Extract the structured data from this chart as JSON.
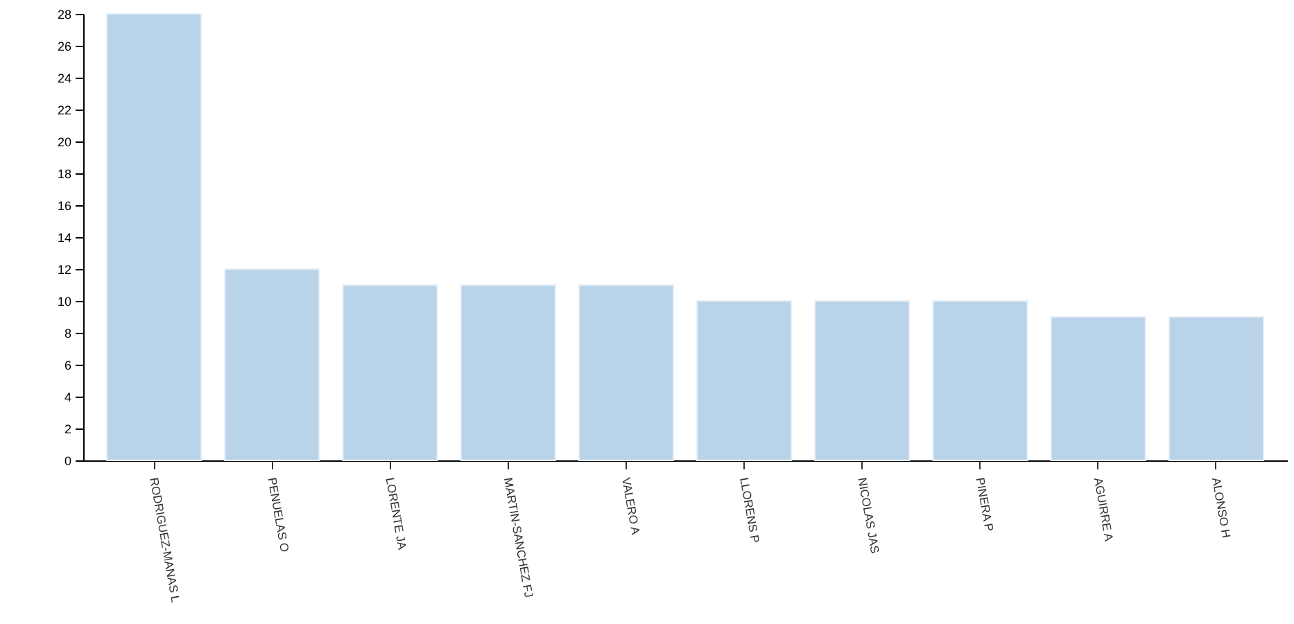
{
  "chart_data": {
    "type": "bar",
    "categories": [
      "RODRIGUEZ-MANAS L",
      "PENUELAS O",
      "LORENTE JA",
      "MARTIN-SANCHEZ FJ",
      "VALERO A",
      "LLORENS P",
      "NICOLAS JAS",
      "PINERA P",
      "AGUIRRE A",
      "ALONSO H"
    ],
    "values": [
      28,
      12,
      11,
      11,
      11,
      10,
      10,
      10,
      9,
      9
    ],
    "color": "#b9d3e9",
    "ylim": [
      0,
      28
    ],
    "yticks": [
      0,
      2,
      4,
      6,
      8,
      10,
      12,
      14,
      16,
      18,
      20,
      22,
      24,
      26,
      28
    ],
    "grid": false
  }
}
